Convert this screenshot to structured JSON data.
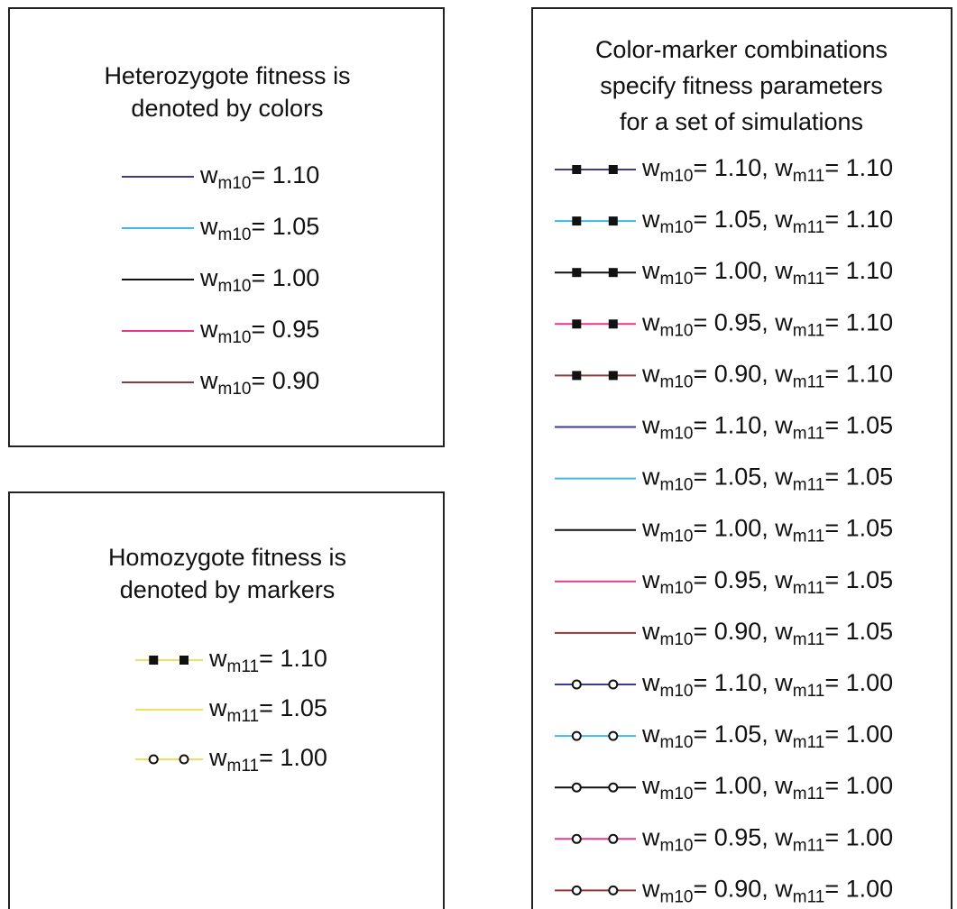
{
  "panels": [
    {
      "title": [
        "Heterozygote fitness is",
        "denoted by colors"
      ],
      "entries": [
        {
          "color": "#3b3b8f",
          "marker": "none",
          "parts": [
            {
              "t": "w"
            },
            {
              "sub": "m10"
            },
            {
              "t": "= 1.10"
            }
          ]
        },
        {
          "color": "#3fb8e8",
          "marker": "none",
          "parts": [
            {
              "t": "w"
            },
            {
              "sub": "m10"
            },
            {
              "t": "= 1.05"
            }
          ]
        },
        {
          "color": "#111111",
          "marker": "none",
          "parts": [
            {
              "t": "w"
            },
            {
              "sub": "m10"
            },
            {
              "t": "= 1.00"
            }
          ]
        },
        {
          "color": "#e8388a",
          "marker": "none",
          "parts": [
            {
              "t": "w"
            },
            {
              "sub": "m10"
            },
            {
              "t": "= 0.95"
            }
          ]
        },
        {
          "color": "#8b3a3a",
          "marker": "none",
          "parts": [
            {
              "t": "w"
            },
            {
              "sub": "m10"
            },
            {
              "t": "= 0.90"
            }
          ]
        }
      ]
    },
    {
      "title": [
        "Homozygote fitness is",
        "denoted by markers"
      ],
      "entries": [
        {
          "color": "#f0e060",
          "marker": "square",
          "parts": [
            {
              "t": "w"
            },
            {
              "sub": "m11"
            },
            {
              "t": "= 1.10"
            }
          ]
        },
        {
          "color": "#f0e060",
          "marker": "none",
          "parts": [
            {
              "t": "w"
            },
            {
              "sub": "m11"
            },
            {
              "t": "= 1.05"
            }
          ]
        },
        {
          "color": "#f0e060",
          "marker": "circle",
          "parts": [
            {
              "t": "w"
            },
            {
              "sub": "m11"
            },
            {
              "t": "= 1.00"
            }
          ]
        }
      ]
    },
    {
      "title": [
        "Color-marker combinations",
        "specify fitness parameters",
        "for a set of simulations"
      ],
      "entries": [
        {
          "color": "#3b3b8f",
          "marker": "square",
          "parts": [
            {
              "t": "w"
            },
            {
              "sub": "m10"
            },
            {
              "t": "= 1.10, w"
            },
            {
              "sub": "m11"
            },
            {
              "t": "= 1.10"
            }
          ]
        },
        {
          "color": "#3fb8e8",
          "marker": "square",
          "parts": [
            {
              "t": "w"
            },
            {
              "sub": "m10"
            },
            {
              "t": "= 1.05, w"
            },
            {
              "sub": "m11"
            },
            {
              "t": "= 1.10"
            }
          ]
        },
        {
          "color": "#111111",
          "marker": "square",
          "parts": [
            {
              "t": "w"
            },
            {
              "sub": "m10"
            },
            {
              "t": "= 1.00, w"
            },
            {
              "sub": "m11"
            },
            {
              "t": "= 1.10"
            }
          ]
        },
        {
          "color": "#e8388a",
          "marker": "square",
          "parts": [
            {
              "t": "w"
            },
            {
              "sub": "m10"
            },
            {
              "t": "= 0.95, w"
            },
            {
              "sub": "m11"
            },
            {
              "t": "= 1.10"
            }
          ]
        },
        {
          "color": "#8b3a3a",
          "marker": "square",
          "parts": [
            {
              "t": "w"
            },
            {
              "sub": "m10"
            },
            {
              "t": "= 0.90, w"
            },
            {
              "sub": "m11"
            },
            {
              "t": "= 1.10"
            }
          ]
        },
        {
          "color": "#3b3b8f",
          "marker": "none",
          "parts": [
            {
              "t": "w"
            },
            {
              "sub": "m10"
            },
            {
              "t": "= 1.10, w"
            },
            {
              "sub": "m11"
            },
            {
              "t": "= 1.05"
            }
          ]
        },
        {
          "color": "#3fb8e8",
          "marker": "none",
          "parts": [
            {
              "t": "w"
            },
            {
              "sub": "m10"
            },
            {
              "t": "= 1.05, w"
            },
            {
              "sub": "m11"
            },
            {
              "t": "= 1.05"
            }
          ]
        },
        {
          "color": "#111111",
          "marker": "none",
          "parts": [
            {
              "t": "w"
            },
            {
              "sub": "m10"
            },
            {
              "t": "= 1.00, w"
            },
            {
              "sub": "m11"
            },
            {
              "t": "= 1.05"
            }
          ]
        },
        {
          "color": "#e8388a",
          "marker": "none",
          "parts": [
            {
              "t": "w"
            },
            {
              "sub": "m10"
            },
            {
              "t": "= 0.95, w"
            },
            {
              "sub": "m11"
            },
            {
              "t": "= 1.05"
            }
          ]
        },
        {
          "color": "#8b3a3a",
          "marker": "none",
          "parts": [
            {
              "t": "w"
            },
            {
              "sub": "m10"
            },
            {
              "t": "= 0.90, w"
            },
            {
              "sub": "m11"
            },
            {
              "t": "= 1.05"
            }
          ]
        },
        {
          "color": "#3b3b8f",
          "marker": "circle",
          "parts": [
            {
              "t": "w"
            },
            {
              "sub": "m10"
            },
            {
              "t": "= 1.10, w"
            },
            {
              "sub": "m11"
            },
            {
              "t": "= 1.00"
            }
          ]
        },
        {
          "color": "#3fb8e8",
          "marker": "circle",
          "parts": [
            {
              "t": "w"
            },
            {
              "sub": "m10"
            },
            {
              "t": "= 1.05, w"
            },
            {
              "sub": "m11"
            },
            {
              "t": "= 1.00"
            }
          ]
        },
        {
          "color": "#111111",
          "marker": "circle",
          "parts": [
            {
              "t": "w"
            },
            {
              "sub": "m10"
            },
            {
              "t": "= 1.00, w"
            },
            {
              "sub": "m11"
            },
            {
              "t": "= 1.00"
            }
          ]
        },
        {
          "color": "#e8388a",
          "marker": "circle",
          "parts": [
            {
              "t": "w"
            },
            {
              "sub": "m10"
            },
            {
              "t": "= 0.95, w"
            },
            {
              "sub": "m11"
            },
            {
              "t": "= 1.00"
            }
          ]
        },
        {
          "color": "#8b3a3a",
          "marker": "circle",
          "parts": [
            {
              "t": "w"
            },
            {
              "sub": "m10"
            },
            {
              "t": "= 0.90, w"
            },
            {
              "sub": "m11"
            },
            {
              "t": "= 1.00"
            }
          ]
        }
      ]
    }
  ]
}
